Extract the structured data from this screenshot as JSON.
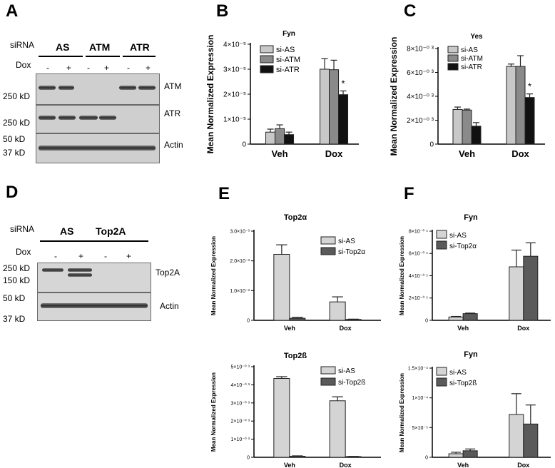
{
  "panels": {
    "A": {
      "label": "A",
      "sirna_label": "siRNA",
      "dox_label": "Dox",
      "groups": [
        "AS",
        "ATM",
        "ATR"
      ],
      "dox_signs": [
        "-",
        "+",
        "-",
        "+",
        "-",
        "+"
      ],
      "blots": [
        {
          "name": "ATM",
          "markers": [
            "250 kD"
          ]
        },
        {
          "name": "ATR",
          "markers": [
            "250 kD"
          ]
        },
        {
          "name": "Actin",
          "markers": [
            "50 kD",
            "37 kD"
          ]
        }
      ]
    },
    "B": {
      "label": "B"
    },
    "C": {
      "label": "C"
    },
    "D": {
      "label": "D",
      "sirna_label": "siRNA",
      "dox_label": "Dox",
      "groups": [
        "AS",
        "Top2A"
      ],
      "dox_signs": [
        "-",
        "+",
        "-",
        "+"
      ],
      "blots": [
        {
          "name": "Top2A",
          "markers": [
            "250 kD",
            "150 kD"
          ]
        },
        {
          "name": "Actin",
          "markers": [
            "50 kD",
            "37 kD"
          ]
        }
      ]
    },
    "E": {
      "label": "E"
    },
    "F": {
      "label": "F"
    }
  },
  "chart_data": [
    {
      "id": "B",
      "type": "bar",
      "title": "Fyn",
      "ylabel": "Mean Normalized  Expression",
      "xlabel": "",
      "categories": [
        "Veh",
        "Dox"
      ],
      "ylim": [
        0,
        4e-05
      ],
      "yticks": [
        0,
        1e-05,
        2e-05,
        3e-05,
        4e-05
      ],
      "yticklabels": [
        "0",
        "1×10⁻⁵",
        "2×10⁻⁵",
        "3×10⁻⁵",
        "4×10⁻⁵"
      ],
      "series": [
        {
          "name": "si-AS",
          "color": "#c8c8c8",
          "values": [
            4.8e-06,
            3e-05
          ],
          "errors": [
            1.2e-06,
            4.2e-06
          ]
        },
        {
          "name": "si-ATM",
          "color": "#8a8a8a",
          "values": [
            6.2e-06,
            2.98e-05
          ],
          "errors": [
            1.5e-06,
            3.8e-06
          ]
        },
        {
          "name": "si-ATR",
          "color": "#111111",
          "values": [
            3.8e-06,
            1.98e-05
          ],
          "errors": [
            1e-06,
            1.5e-06
          ]
        }
      ],
      "annotations": [
        {
          "text": "*",
          "category": "Dox",
          "series": "si-ATR"
        }
      ],
      "legend": "top-left"
    },
    {
      "id": "C",
      "type": "bar",
      "title": "Yes",
      "ylabel": "Mean Normalized Expression",
      "xlabel": "",
      "categories": [
        "Veh",
        "Dox"
      ],
      "ylim": [
        0,
        0.008
      ],
      "yticks": [
        0,
        0.002,
        0.004,
        0.006,
        0.008
      ],
      "yticklabels": [
        "0",
        "2×10⁻⁰ ³",
        "4×10⁻⁰ ³",
        "6×10⁻⁰ ³",
        "8×10⁻⁰ ³"
      ],
      "series": [
        {
          "name": "si-AS",
          "color": "#c8c8c8",
          "values": [
            0.0029,
            0.0065
          ],
          "errors": [
            0.0002,
            0.0002
          ]
        },
        {
          "name": "si-ATM",
          "color": "#8a8a8a",
          "values": [
            0.00285,
            0.0065
          ],
          "errors": [
            8e-05,
            0.0009
          ]
        },
        {
          "name": "si-ATR",
          "color": "#111111",
          "values": [
            0.0015,
            0.0039
          ],
          "errors": [
            0.0003,
            0.0003
          ]
        }
      ],
      "annotations": [
        {
          "text": "*",
          "category": "Dox",
          "series": "si-ATR"
        }
      ],
      "legend": "top-left"
    },
    {
      "id": "E1",
      "type": "bar",
      "title": "Top2α",
      "ylabel": "Mean Normalized  Expression",
      "xlabel": "",
      "categories": [
        "Veh",
        "Dox"
      ],
      "ylim": [
        0,
        0.003
      ],
      "yticks": [
        0,
        0.001,
        0.002,
        0.003
      ],
      "yticklabels": [
        "0",
        "1.0×10⁻³",
        "2.0×10⁻³",
        "3.0×10⁻³"
      ],
      "series": [
        {
          "name": "si-AS",
          "color": "#d4d4d4",
          "values": [
            0.00222,
            0.00062
          ],
          "errors": [
            0.00032,
            0.00017
          ]
        },
        {
          "name": "si-Top2α",
          "color": "#5a5a5a",
          "values": [
            7e-05,
            3e-05
          ],
          "errors": [
            3e-05,
            1e-05
          ]
        }
      ],
      "legend": "right"
    },
    {
      "id": "E2",
      "type": "bar",
      "title": "Top2ß",
      "ylabel": "Mean Normalized Expression",
      "xlabel": "",
      "categories": [
        "Veh",
        "Dox"
      ],
      "ylim": [
        0,
        0.005
      ],
      "yticks": [
        0,
        0.001,
        0.002,
        0.003,
        0.004,
        0.005
      ],
      "yticklabels": [
        "0",
        "1×10⁻⁰ ³",
        "2×10⁻⁰ ³",
        "3×10⁻⁰ ³",
        "4×10⁻⁰ ³",
        "5×10⁻⁰ ³"
      ],
      "series": [
        {
          "name": "si-AS",
          "color": "#d4d4d4",
          "values": [
            0.00435,
            0.00312
          ],
          "errors": [
            0.0001,
            0.00022
          ]
        },
        {
          "name": "si-Top2ß",
          "color": "#5a5a5a",
          "values": [
            6e-05,
            4e-05
          ],
          "errors": [
            2e-05,
            1e-05
          ]
        }
      ],
      "legend": "right"
    },
    {
      "id": "F1",
      "type": "bar",
      "title": "Fyn",
      "ylabel": "Mean Normalized  Expression",
      "xlabel": "",
      "categories": [
        "Veh",
        "Dox"
      ],
      "ylim": [
        0,
        8e-05
      ],
      "yticks": [
        0,
        2e-05,
        4e-05,
        6e-05,
        8e-05
      ],
      "yticklabels": [
        "0",
        "2×10⁻⁰ ⁵",
        "4×10⁻⁰ ⁵",
        "6×10⁻⁰ ⁵",
        "8×10⁻⁰ ⁵"
      ],
      "series": [
        {
          "name": "si-AS",
          "color": "#d4d4d4",
          "values": [
            3e-06,
            4.8e-05
          ],
          "errors": [
            5e-07,
            1.5e-05
          ]
        },
        {
          "name": "si-Top2α",
          "color": "#5a5a5a",
          "values": [
            6e-06,
            5.75e-05
          ],
          "errors": [
            5e-07,
            1.2e-05
          ]
        }
      ],
      "legend": "top-left"
    },
    {
      "id": "F2",
      "type": "bar",
      "title": "Fyn",
      "ylabel": "Mean Normalized  Expression",
      "xlabel": "",
      "categories": [
        "Veh",
        "Dox"
      ],
      "ylim": [
        0,
        0.00015
      ],
      "yticks": [
        0,
        5e-05,
        0.0001,
        0.00015
      ],
      "yticklabels": [
        "0",
        "5×10⁻⁵",
        "1×10⁻⁴",
        "1.5×10⁻⁴"
      ],
      "series": [
        {
          "name": "si-AS",
          "color": "#d4d4d4",
          "values": [
            6e-06,
            7.2e-05
          ],
          "errors": [
            2.5e-06,
            3.5e-05
          ]
        },
        {
          "name": "si-Top2ß",
          "color": "#5a5a5a",
          "values": [
            1.1e-05,
            5.6e-05
          ],
          "errors": [
            3e-06,
            3.2e-05
          ]
        }
      ],
      "legend": "top-left"
    }
  ]
}
